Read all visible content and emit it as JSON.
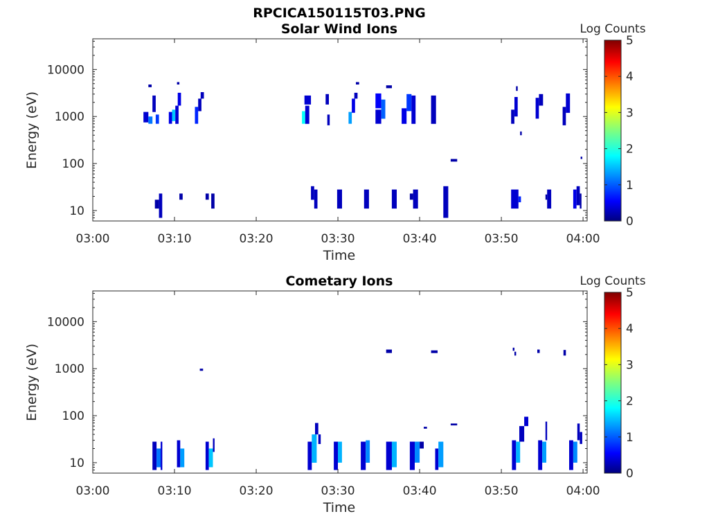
{
  "figure_title": "RPCICA150115T03.PNG",
  "colors": {
    "axis": "#262626",
    "background": "#ffffff"
  },
  "chart_data": [
    {
      "type": "heatmap",
      "title": "Solar Wind Ions",
      "xlabel": "Time",
      "ylabel": "Energy (eV)",
      "x_ticks": [
        "03:00",
        "03:10",
        "03:20",
        "03:30",
        "03:40",
        "03:50",
        "04:00"
      ],
      "xlim_minutes": [
        0,
        60.5
      ],
      "y_scale": "log",
      "ylim": [
        6,
        45000
      ],
      "y_ticks": [
        10,
        100,
        1000,
        10000
      ],
      "y_tick_labels": [
        "10",
        "100",
        "1000",
        "10000"
      ],
      "grid": false,
      "colorbar": {
        "label": "Log Counts",
        "range": [
          0,
          5
        ],
        "ticks": [
          "0",
          "1",
          "2",
          "3",
          "4",
          "5"
        ],
        "colormap": "jet"
      },
      "cells": [
        [
          6.2,
          6.8,
          750,
          1250,
          0.4
        ],
        [
          6.8,
          7.3,
          700,
          1000,
          1.2
        ],
        [
          7.3,
          7.7,
          1250,
          2800,
          0.3
        ],
        [
          7.7,
          8.1,
          700,
          1100,
          0.9
        ],
        [
          6.8,
          7.2,
          4200,
          4800,
          0.2
        ],
        [
          9.3,
          9.7,
          700,
          1250,
          0.5
        ],
        [
          9.7,
          10.1,
          800,
          1400,
          1.6
        ],
        [
          10.1,
          10.5,
          700,
          1700,
          0.4
        ],
        [
          10.4,
          10.8,
          1700,
          3200,
          0.5
        ],
        [
          10.3,
          10.6,
          4800,
          5400,
          0.2
        ],
        [
          12.5,
          12.9,
          700,
          1600,
          0.8
        ],
        [
          12.9,
          13.3,
          1300,
          2400,
          0.3
        ],
        [
          13.2,
          13.6,
          2400,
          3300,
          0.3
        ],
        [
          25.6,
          26.0,
          700,
          1300,
          1.9
        ],
        [
          26.0,
          26.5,
          700,
          1700,
          0.4
        ],
        [
          25.9,
          26.7,
          1800,
          2800,
          0.4
        ],
        [
          28.5,
          28.9,
          1800,
          3000,
          0.3
        ],
        [
          28.7,
          29.0,
          650,
          1100,
          0.3
        ],
        [
          31.3,
          31.7,
          700,
          1250,
          1.4
        ],
        [
          31.7,
          32.1,
          1200,
          2400,
          0.5
        ],
        [
          32.0,
          32.4,
          2400,
          3200,
          0.3
        ],
        [
          32.2,
          32.6,
          4800,
          5400,
          0.2
        ],
        [
          34.6,
          35.3,
          700,
          1400,
          0.4
        ],
        [
          34.6,
          35.3,
          1500,
          3100,
          0.6
        ],
        [
          35.3,
          35.8,
          900,
          2300,
          1.1
        ],
        [
          35.9,
          36.6,
          4000,
          4600,
          0.2
        ],
        [
          37.8,
          38.4,
          700,
          1500,
          0.5
        ],
        [
          38.4,
          39.0,
          1300,
          3000,
          0.9
        ],
        [
          39.0,
          39.5,
          700,
          2800,
          0.4
        ],
        [
          41.4,
          42.0,
          700,
          2800,
          0.3
        ],
        [
          51.2,
          51.6,
          700,
          1400,
          0.3
        ],
        [
          51.6,
          52.0,
          1000,
          2600,
          0.4
        ],
        [
          51.8,
          52.0,
          3500,
          4400,
          0.2
        ],
        [
          52.3,
          52.5,
          400,
          480,
          0.2
        ],
        [
          54.2,
          54.6,
          900,
          2500,
          0.4
        ],
        [
          54.6,
          55.1,
          1700,
          3000,
          0.3
        ],
        [
          57.5,
          57.9,
          650,
          1600,
          0.3
        ],
        [
          57.9,
          58.4,
          1200,
          3100,
          0.4
        ],
        [
          43.8,
          44.6,
          110,
          125,
          0.2
        ],
        [
          59.7,
          59.9,
          125,
          140,
          0.2
        ],
        [
          7.6,
          8.1,
          11,
          17,
          0.2
        ],
        [
          8.1,
          8.5,
          7,
          23,
          0.3
        ],
        [
          10.6,
          11.0,
          17,
          23,
          0.2
        ],
        [
          13.8,
          14.2,
          17,
          23,
          0.2
        ],
        [
          14.5,
          14.9,
          11,
          23,
          0.2
        ],
        [
          26.7,
          27.1,
          17,
          33,
          0.3
        ],
        [
          27.1,
          27.5,
          11,
          28,
          0.3
        ],
        [
          29.9,
          30.5,
          11,
          28,
          0.3
        ],
        [
          33.2,
          33.8,
          11,
          28,
          0.3
        ],
        [
          36.6,
          37.2,
          11,
          28,
          0.3
        ],
        [
          38.8,
          39.2,
          17,
          23,
          0.2
        ],
        [
          39.2,
          39.8,
          11,
          28,
          0.3
        ],
        [
          42.9,
          43.5,
          7,
          33,
          0.3
        ],
        [
          51.2,
          52.1,
          11,
          28,
          0.4
        ],
        [
          52.1,
          52.4,
          15,
          20,
          0.8
        ],
        [
          55.4,
          55.6,
          17,
          22,
          0.2
        ],
        [
          55.6,
          56.1,
          11,
          28,
          0.3
        ],
        [
          58.8,
          59.2,
          11,
          28,
          0.5
        ],
        [
          59.2,
          59.6,
          13,
          33,
          0.3
        ],
        [
          59.6,
          59.8,
          11,
          23,
          0.2
        ]
      ]
    },
    {
      "type": "heatmap",
      "title": "Cometary Ions",
      "xlabel": "Time",
      "ylabel": "Energy (eV)",
      "x_ticks": [
        "03:00",
        "03:10",
        "03:20",
        "03:30",
        "03:40",
        "03:50",
        "04:00"
      ],
      "xlim_minutes": [
        0,
        60.5
      ],
      "y_scale": "log",
      "ylim": [
        6,
        45000
      ],
      "y_ticks": [
        10,
        100,
        1000,
        10000
      ],
      "y_tick_labels": [
        "10",
        "100",
        "1000",
        "10000"
      ],
      "grid": false,
      "colorbar": {
        "label": "Log Counts",
        "range": [
          0,
          5
        ],
        "ticks": [
          "0",
          "1",
          "2",
          "3",
          "4",
          "5"
        ],
        "colormap": "jet"
      },
      "cells": [
        [
          7.3,
          7.8,
          7,
          28,
          0.3
        ],
        [
          7.8,
          8.3,
          8,
          20,
          1.2
        ],
        [
          8.3,
          8.5,
          7,
          28,
          0.4
        ],
        [
          10.3,
          10.7,
          8,
          30,
          0.4
        ],
        [
          10.7,
          11.2,
          8,
          20,
          1.4
        ],
        [
          13.8,
          14.2,
          7,
          28,
          0.4
        ],
        [
          14.2,
          14.7,
          8,
          20,
          1.6
        ],
        [
          14.7,
          14.9,
          17,
          33,
          0.3
        ],
        [
          26.3,
          26.8,
          7,
          28,
          0.4
        ],
        [
          26.8,
          27.4,
          10,
          40,
          1.5
        ],
        [
          27.2,
          27.6,
          40,
          70,
          0.3
        ],
        [
          27.6,
          27.9,
          25,
          40,
          0.3
        ],
        [
          29.5,
          30.0,
          7,
          28,
          0.4
        ],
        [
          30.0,
          30.5,
          10,
          28,
          1.5
        ],
        [
          32.8,
          33.4,
          7,
          28,
          0.4
        ],
        [
          33.4,
          33.9,
          10,
          30,
          1.3
        ],
        [
          35.9,
          36.6,
          7,
          28,
          0.4
        ],
        [
          36.6,
          37.2,
          8,
          28,
          1.5
        ],
        [
          38.8,
          39.4,
          7,
          28,
          0.4
        ],
        [
          39.4,
          40.0,
          10,
          28,
          1.3
        ],
        [
          40.0,
          40.5,
          20,
          28,
          0.2
        ],
        [
          40.5,
          40.9,
          53,
          58,
          0.2
        ],
        [
          41.9,
          42.3,
          7,
          20,
          0.4
        ],
        [
          42.3,
          42.9,
          8,
          28,
          1.4
        ],
        [
          43.8,
          44.6,
          62,
          68,
          0.2
        ],
        [
          51.3,
          51.8,
          7,
          30,
          0.4
        ],
        [
          51.8,
          52.3,
          10,
          28,
          1.5
        ],
        [
          52.2,
          52.8,
          28,
          60,
          0.3
        ],
        [
          52.8,
          53.3,
          60,
          95,
          0.4
        ],
        [
          54.5,
          55.0,
          7,
          30,
          0.4
        ],
        [
          55.0,
          55.5,
          10,
          28,
          1.4
        ],
        [
          55.4,
          55.6,
          30,
          75,
          0.3
        ],
        [
          58.3,
          58.8,
          7,
          30,
          0.4
        ],
        [
          58.8,
          59.3,
          10,
          28,
          1.3
        ],
        [
          59.3,
          59.6,
          30,
          68,
          0.3
        ],
        [
          59.6,
          59.9,
          25,
          45,
          0.3
        ],
        [
          13.1,
          13.5,
          900,
          1000,
          0.2
        ],
        [
          35.9,
          36.6,
          2150,
          2550,
          0.2
        ],
        [
          41.4,
          42.2,
          2150,
          2450,
          0.2
        ],
        [
          51.4,
          51.6,
          2400,
          2800,
          0.2
        ],
        [
          51.6,
          51.8,
          1900,
          2300,
          0.2
        ],
        [
          54.4,
          54.7,
          2150,
          2550,
          0.2
        ],
        [
          57.6,
          57.9,
          1900,
          2500,
          0.2
        ]
      ]
    }
  ]
}
